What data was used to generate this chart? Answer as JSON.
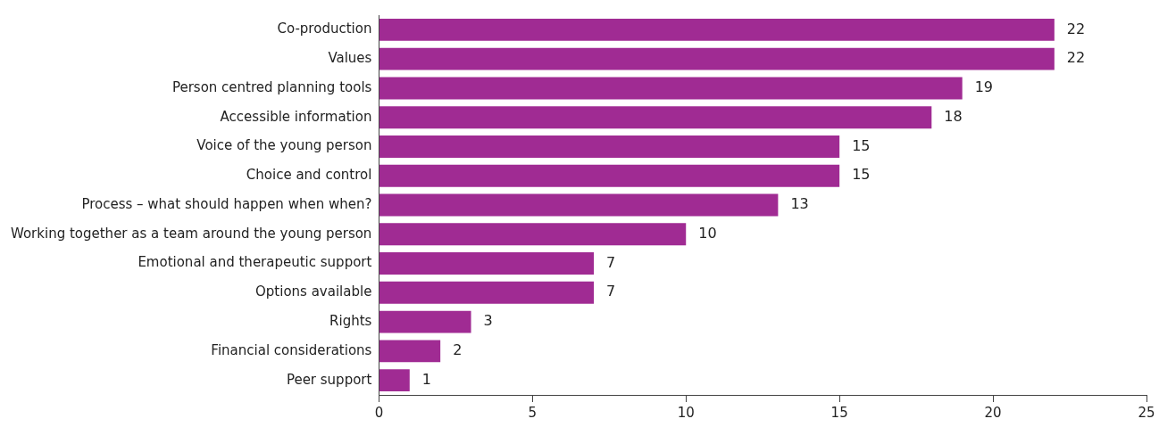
{
  "chart_data": {
    "type": "bar",
    "orientation": "horizontal",
    "categories": [
      "Co-production",
      "Values",
      "Person centred planning tools",
      "Accessible information",
      "Voice of the young person",
      "Choice and control",
      "Process – what should happen when when?",
      "Working together as a team around the young person",
      "Emotional and therapeutic support",
      "Options available",
      "Rights",
      "Financial considerations",
      "Peer support"
    ],
    "values": [
      22,
      22,
      19,
      18,
      15,
      15,
      13,
      10,
      7,
      7,
      3,
      2,
      1
    ],
    "color": "#a02b93",
    "xlim": [
      0,
      25
    ],
    "xticks": [
      0,
      5,
      10,
      15,
      20,
      25
    ],
    "grid": false,
    "legend": false,
    "data_labels": true
  }
}
